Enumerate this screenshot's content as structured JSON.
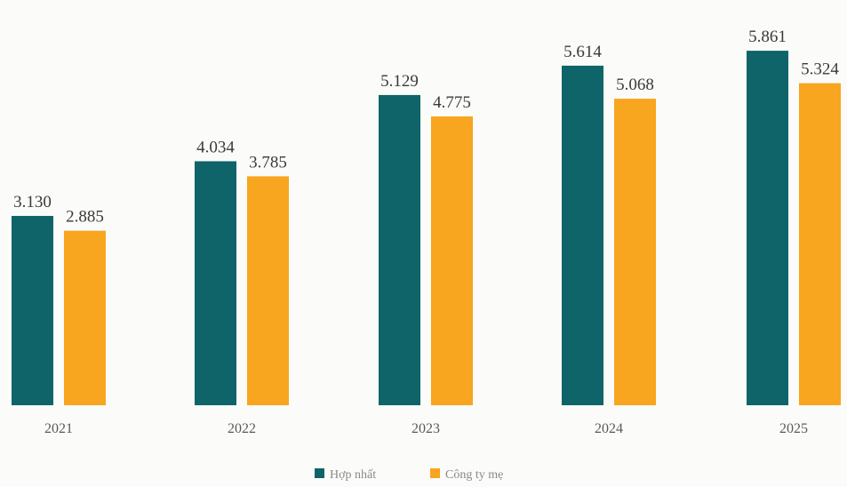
{
  "chart_data": {
    "type": "bar",
    "categories": [
      "2021",
      "2022",
      "2023",
      "2024",
      "2025"
    ],
    "series": [
      {
        "name": "Hợp nhất",
        "values": [
          3130,
          4034,
          5129,
          5614,
          5861
        ],
        "labels": [
          "3.130",
          "4.034",
          "5.129",
          "5.614",
          "5.861"
        ],
        "color": "#0e6468"
      },
      {
        "name": "Công ty mẹ",
        "values": [
          2885,
          3785,
          4775,
          5068,
          5324
        ],
        "labels": [
          "2.885",
          "3.785",
          "4.775",
          "5.068",
          "5.324"
        ],
        "color": "#f8a51f"
      }
    ],
    "title": "",
    "xlabel": "",
    "ylabel": "",
    "ylim": [
      0,
      6700
    ],
    "grid": false,
    "legend_position": "bottom-center"
  }
}
